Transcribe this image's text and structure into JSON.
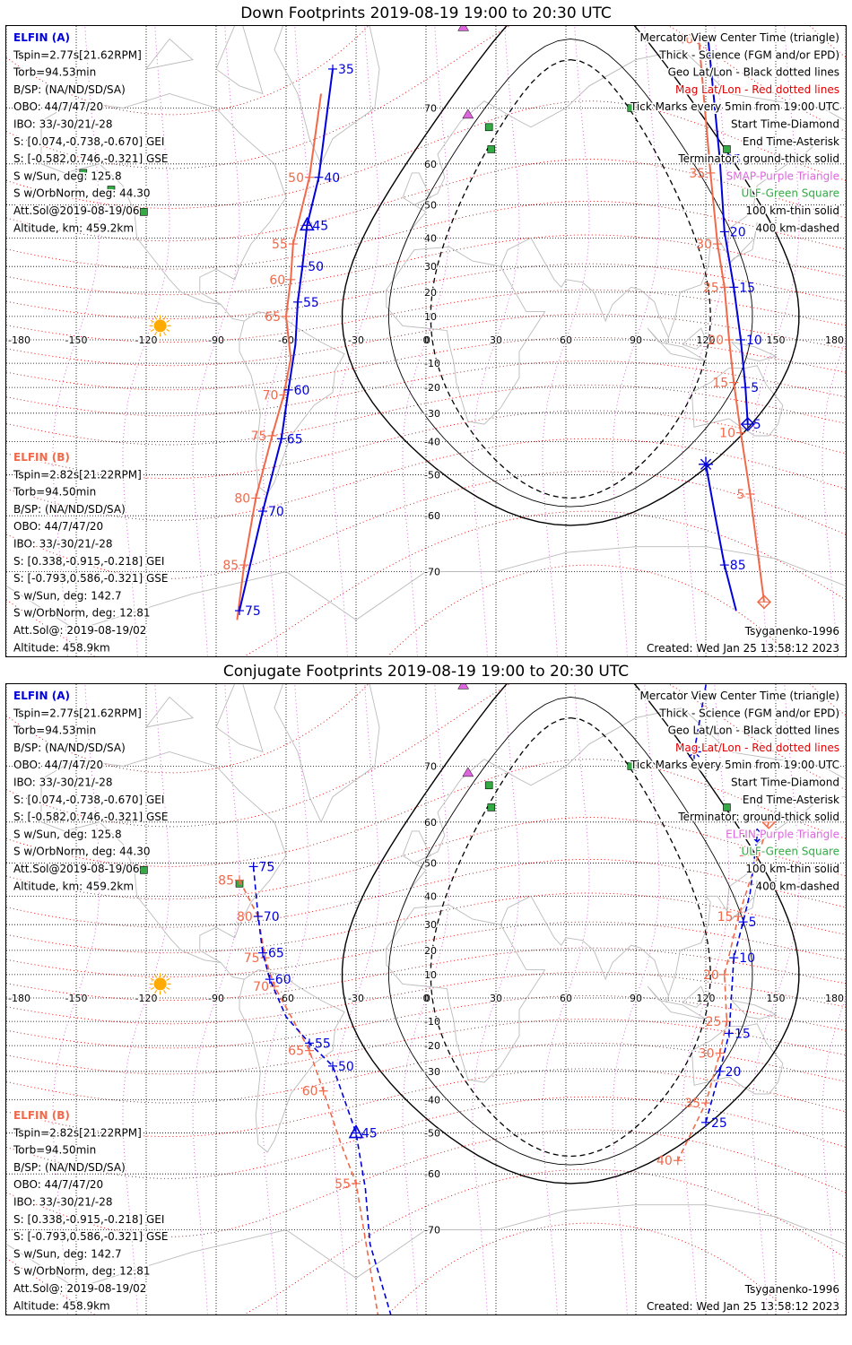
{
  "colors": {
    "elfin_a": "#0000dd",
    "elfin_b": "#f0694a",
    "mag_grid": "#e00000",
    "geo_grid": "#000000",
    "mercator_triangle": "#dd66dd",
    "ulf_square": "#33aa44",
    "sun": "#ffaa00",
    "coast": "#bbbbbb",
    "ulf_label": "#33aa44",
    "mercator_label": "#dd66dd"
  },
  "panels": [
    {
      "title": "Down Footprints 2019-08-19 19:00 to 20:30 UTC",
      "elfin_a": {
        "header": "ELFIN (A)",
        "lines": [
          "Tspin=2.77s[21.62RPM]",
          "Torb=94.53min",
          "B/SP: (NA/ND/SD/SA)",
          "OBO: 44/7/47/20",
          "IBO: 33/-30/21/-28",
          "S: [0.074,-0.738,-0.670] GEI",
          "S: [-0.582,0.746,-0.321] GSE",
          "S w/Sun, deg: 125.8",
          "S w/OrbNorm, deg: 44.30",
          "Att.Sol@2019-08-19/06",
          "Altitude, km: 459.2km"
        ]
      },
      "elfin_b": {
        "header": "ELFIN (B)",
        "lines": [
          "Tspin=2.82s[21.22RPM]",
          "Torb=94.50min",
          "B/SP: (NA/ND/SD/SA)",
          "OBO: 44/7/47/20",
          "IBO: 33/-30/21/-28",
          "S: [0.338,-0.915,-0.218] GEI",
          "S: [-0.793,0.586,-0.321] GSE",
          "S w/Sun, deg: 142.7",
          "S w/OrbNorm, deg: 12.81",
          "Att.Sol@: 2019-08-19/02",
          "Altitude: 458.9km"
        ]
      },
      "legend": [
        {
          "text": "Mercator View Center Time (triangle)",
          "color": "#000000"
        },
        {
          "text": "Thick - Science (FGM and/or EPD)",
          "color": "#000000"
        },
        {
          "text": "Geo Lat/Lon - Black dotted lines",
          "color": "#000000"
        },
        {
          "text": "Mag Lat/Lon - Red dotted lines",
          "color": "#e00000"
        },
        {
          "text": "Tick Marks every 5min from 19:00 UTC",
          "color": "#000000"
        },
        {
          "text": "Start Time-Diamond",
          "color": "#000000"
        },
        {
          "text": "End Time-Asterisk",
          "color": "#000000"
        },
        {
          "text": "Terminator: ground-thick solid",
          "color": "#000000"
        },
        {
          "text": "SMAP-Purple Triangle",
          "color": "#dd66dd"
        },
        {
          "text": "ULF-Green Square",
          "color": "#33aa44"
        },
        {
          "text": "100 km-thin solid",
          "color": "#000000"
        },
        {
          "text": "400 km-dashed",
          "color": "#000000"
        }
      ],
      "model": "Tsyganenko-1996",
      "created": "Created: Wed Jan 25 13:58:12 2023"
    },
    {
      "title": "Conjugate Footprints 2019-08-19 19:00 to 20:30 UTC",
      "elfin_a": {
        "header": "ELFIN (A)",
        "lines": [
          "Tspin=2.77s[21.62RPM]",
          "Torb=94.53min",
          "B/SP: (NA/ND/SD/SA)",
          "OBO: 44/7/47/20",
          "IBO: 33/-30/21/-28",
          "S: [0.074,-0.738,-0.670] GEI",
          "S: [-0.582,0.746,-0.321] GSE",
          "S w/Sun, deg: 125.8",
          "S w/OrbNorm, deg: 44.30",
          "Att.Sol@2019-08-19/06",
          "Altitude, km: 459.2km"
        ]
      },
      "elfin_b": {
        "header": "ELFIN (B)",
        "lines": [
          "Tspin=2.82s[21.22RPM]",
          "Torb=94.50min",
          "B/SP: (NA/ND/SD/SA)",
          "OBO: 44/7/47/20",
          "IBO: 33/-30/21/-28",
          "S: [0.338,-0.915,-0.218] GEI",
          "S: [-0.793,0.586,-0.321] GSE",
          "S w/Sun, deg: 142.7",
          "S w/OrbNorm, deg: 12.81",
          "Att.Sol@: 2019-08-19/02",
          "Altitude: 458.9km"
        ]
      },
      "legend": [
        {
          "text": "Mercator View Center Time (triangle)",
          "color": "#000000"
        },
        {
          "text": "Thick - Science (FGM and/or EPD)",
          "color": "#000000"
        },
        {
          "text": "Geo Lat/Lon - Black dotted lines",
          "color": "#000000"
        },
        {
          "text": "Mag Lat/Lon - Red dotted lines",
          "color": "#e00000"
        },
        {
          "text": "Tick Marks every 5min from 19:00 UTC",
          "color": "#000000"
        },
        {
          "text": "Start Time-Diamond",
          "color": "#000000"
        },
        {
          "text": "End Time-Asterisk",
          "color": "#000000"
        },
        {
          "text": "Terminator: ground-thick solid",
          "color": "#000000"
        },
        {
          "text": "ELFIN-Purple Triangle",
          "color": "#dd66dd"
        },
        {
          "text": "ULF-Green Square",
          "color": "#33aa44"
        },
        {
          "text": "100 km-thin solid",
          "color": "#000000"
        },
        {
          "text": "400 km-dashed",
          "color": "#000000"
        }
      ],
      "model": "Tsyganenko-1996",
      "created": "Created: Wed Jan 25 13:58:12 2023"
    }
  ],
  "chart_data": [
    {
      "type": "scatter",
      "title": "Down Footprints 2019-08-19 19:00 to 20:30 UTC",
      "xlim": [
        -180,
        180
      ],
      "ylim": [
        -80,
        80
      ],
      "x_ticks": [
        -180,
        -150,
        -120,
        -90,
        -60,
        -30,
        0,
        30,
        60,
        90,
        120,
        150,
        180
      ],
      "y_ticks": [
        -70,
        -60,
        -50,
        -40,
        -30,
        -20,
        -10,
        0,
        10,
        20,
        30,
        40,
        50,
        60,
        70
      ],
      "grid": true,
      "sun": {
        "lon": -114,
        "lat": 6
      },
      "smap_triangles": [
        {
          "lon": 16,
          "lat": 79
        }
      ],
      "center_triangles": [
        {
          "lon": 18,
          "lat": 69
        }
      ],
      "ulf_squares": [
        {
          "lon": -147,
          "lat": 58
        },
        {
          "lon": -135,
          "lat": 54
        },
        {
          "lon": -121,
          "lat": 48
        },
        {
          "lon": 27,
          "lat": 67
        },
        {
          "lon": 28,
          "lat": 63
        },
        {
          "lon": 88,
          "lat": 70
        },
        {
          "lon": 129,
          "lat": 63
        }
      ],
      "series": [
        {
          "name": "ELFIN (A)",
          "style": "solid",
          "points": [
            {
              "lon": -40,
              "lat": 75,
              "label": "35"
            },
            {
              "lon": -46,
              "lat": 57,
              "label": "40"
            },
            {
              "lon": -51,
              "lat": 44,
              "label": "45"
            },
            {
              "lon": -53,
              "lat": 30,
              "label": "50"
            },
            {
              "lon": -55,
              "lat": 16,
              "label": "55"
            },
            {
              "lon": -56,
              "lat": -2
            },
            {
              "lon": -59,
              "lat": -21,
              "label": "60"
            },
            {
              "lon": -62,
              "lat": -39,
              "label": "65"
            },
            {
              "lon": -70,
              "lat": -59,
              "label": "70"
            },
            {
              "lon": -80,
              "lat": -75,
              "label": "75"
            }
          ],
          "end_asterisk": {
            "lon": 120,
            "lat": -47
          },
          "end_points": [
            {
              "lon": 120,
              "lat": -47
            },
            {
              "lon": 124,
              "lat": -60
            },
            {
              "lon": 128,
              "lat": -69,
              "label": "85"
            },
            {
              "lon": 133,
              "lat": -75
            }
          ],
          "start_points": [
            {
              "lon": 138,
              "lat": -34,
              "label": "5"
            },
            {
              "lon": 137,
              "lat": -20,
              "label": "5"
            },
            {
              "lon": 135,
              "lat": 0,
              "label": "10"
            },
            {
              "lon": 132,
              "lat": 22,
              "label": "15"
            },
            {
              "lon": 128,
              "lat": 42,
              "label": "20"
            },
            {
              "lon": 126,
              "lat": 61,
              "label": "25"
            },
            {
              "lon": 121,
              "lat": 78
            }
          ],
          "start_diamond": {
            "lon": 138,
            "lat": -34
          }
        },
        {
          "name": "ELFIN (B)",
          "style": "solid",
          "points": [
            {
              "lon": -45,
              "lat": 72
            },
            {
              "lon": -50,
              "lat": 57,
              "label": "50"
            },
            {
              "lon": -57,
              "lat": 38,
              "label": "55"
            },
            {
              "lon": -58,
              "lat": 25,
              "label": "60"
            },
            {
              "lon": -60,
              "lat": 10,
              "label": "65"
            },
            {
              "lon": -58,
              "lat": -8
            },
            {
              "lon": -61,
              "lat": -23,
              "label": "70"
            },
            {
              "lon": -66,
              "lat": -38,
              "label": "75"
            },
            {
              "lon": -73,
              "lat": -56,
              "label": "80"
            },
            {
              "lon": -78,
              "lat": -69,
              "label": "85"
            },
            {
              "lon": -81,
              "lat": -76
            }
          ],
          "start_points": [
            {
              "lon": 117,
              "lat": 78,
              "label": "40"
            },
            {
              "lon": 122,
              "lat": 58,
              "label": "35"
            },
            {
              "lon": 125,
              "lat": 38,
              "label": "30"
            },
            {
              "lon": 128,
              "lat": 22,
              "label": "25"
            },
            {
              "lon": 130,
              "lat": 0,
              "label": "20"
            },
            {
              "lon": 132,
              "lat": -18,
              "label": "15"
            },
            {
              "lon": 135,
              "lat": -37,
              "label": "10"
            },
            {
              "lon": 139,
              "lat": -55,
              "label": "5"
            },
            {
              "lon": 145,
              "lat": -74
            }
          ],
          "start_diamond": {
            "lon": 145,
            "lat": -74
          }
        }
      ]
    },
    {
      "type": "scatter",
      "title": "Conjugate Footprints 2019-08-19 19:00 to 20:30 UTC",
      "xlim": [
        -180,
        180
      ],
      "ylim": [
        -80,
        80
      ],
      "x_ticks": [
        -180,
        -150,
        -120,
        -90,
        -60,
        -30,
        0,
        30,
        60,
        90,
        120,
        150,
        180
      ],
      "y_ticks": [
        -70,
        -60,
        -50,
        -40,
        -30,
        -20,
        -10,
        0,
        10,
        20,
        30,
        40,
        50,
        60,
        70
      ],
      "grid": true,
      "sun": {
        "lon": -114,
        "lat": 6
      },
      "smap_triangles": [
        {
          "lon": 16,
          "lat": 79
        }
      ],
      "center_triangles": [
        {
          "lon": 18,
          "lat": 69
        }
      ],
      "ulf_squares": [
        {
          "lon": -121,
          "lat": 48
        },
        {
          "lon": -80,
          "lat": 44
        },
        {
          "lon": 27,
          "lat": 67
        },
        {
          "lon": 28,
          "lat": 63
        },
        {
          "lon": 88,
          "lat": 70
        },
        {
          "lon": 129,
          "lat": 63
        }
      ],
      "series": [
        {
          "name": "ELFIN (A)",
          "style": "dashed",
          "points": [
            {
              "lon": -74,
              "lat": 49,
              "label": "75"
            },
            {
              "lon": -72,
              "lat": 33,
              "label": "70"
            },
            {
              "lon": -70,
              "lat": 19,
              "label": "65"
            },
            {
              "lon": -67,
              "lat": 8,
              "label": "60"
            },
            {
              "lon": -60,
              "lat": -8
            },
            {
              "lon": -50,
              "lat": -19,
              "label": "55"
            },
            {
              "lon": -40,
              "lat": -28,
              "label": "50"
            },
            {
              "lon": -30,
              "lat": -50,
              "label": "45"
            },
            {
              "lon": -26,
              "lat": -63
            },
            {
              "lon": -24,
              "lat": -72
            },
            {
              "lon": -14,
              "lat": -80
            }
          ],
          "end_asterisk": {
            "lon": 115,
            "lat": 72
          },
          "start_points": [
            {
              "lon": 142,
              "lat": 57
            },
            {
              "lon": 139,
              "lat": 41
            },
            {
              "lon": 136,
              "lat": 31,
              "label": "5"
            },
            {
              "lon": 132,
              "lat": 17,
              "label": "10"
            },
            {
              "lon": 130,
              "lat": -15,
              "label": "15"
            },
            {
              "lon": 126,
              "lat": -30,
              "label": "20"
            },
            {
              "lon": 120,
              "lat": -47,
              "label": "25"
            }
          ],
          "end_points": [
            {
              "lon": 115,
              "lat": 72
            },
            {
              "lon": 120,
              "lat": 79
            },
            {
              "lon": 125,
              "lat": 80
            }
          ],
          "start_diamond": {
            "lon": 142,
            "lat": 57
          }
        },
        {
          "name": "ELFIN (B)",
          "style": "dashed",
          "points": [
            {
              "lon": -80,
              "lat": 45,
              "label": "85"
            },
            {
              "lon": -72,
              "lat": 33,
              "label": "80"
            },
            {
              "lon": -69,
              "lat": 17,
              "label": "75"
            },
            {
              "lon": -65,
              "lat": 5,
              "label": "70"
            },
            {
              "lon": -55,
              "lat": -13
            },
            {
              "lon": -50,
              "lat": -22,
              "label": "65"
            },
            {
              "lon": -44,
              "lat": -37,
              "label": "60"
            },
            {
              "lon": -37,
              "lat": -52
            },
            {
              "lon": -30,
              "lat": -62,
              "label": "55"
            },
            {
              "lon": -20,
              "lat": -80
            }
          ],
          "start_points": [
            {
              "lon": 147,
              "lat": 60
            },
            {
              "lon": 143,
              "lat": 53,
              "label": "10"
            },
            {
              "lon": 134,
              "lat": 33,
              "label": "15"
            },
            {
              "lon": 128,
              "lat": 10,
              "label": "20"
            },
            {
              "lon": 129,
              "lat": -10,
              "label": "25"
            },
            {
              "lon": 126,
              "lat": -23,
              "label": "30"
            },
            {
              "lon": 120,
              "lat": -41,
              "label": "35"
            },
            {
              "lon": 108,
              "lat": -57,
              "label": "40"
            }
          ],
          "start_diamond": {
            "lon": 147,
            "lat": 60
          }
        }
      ]
    }
  ]
}
